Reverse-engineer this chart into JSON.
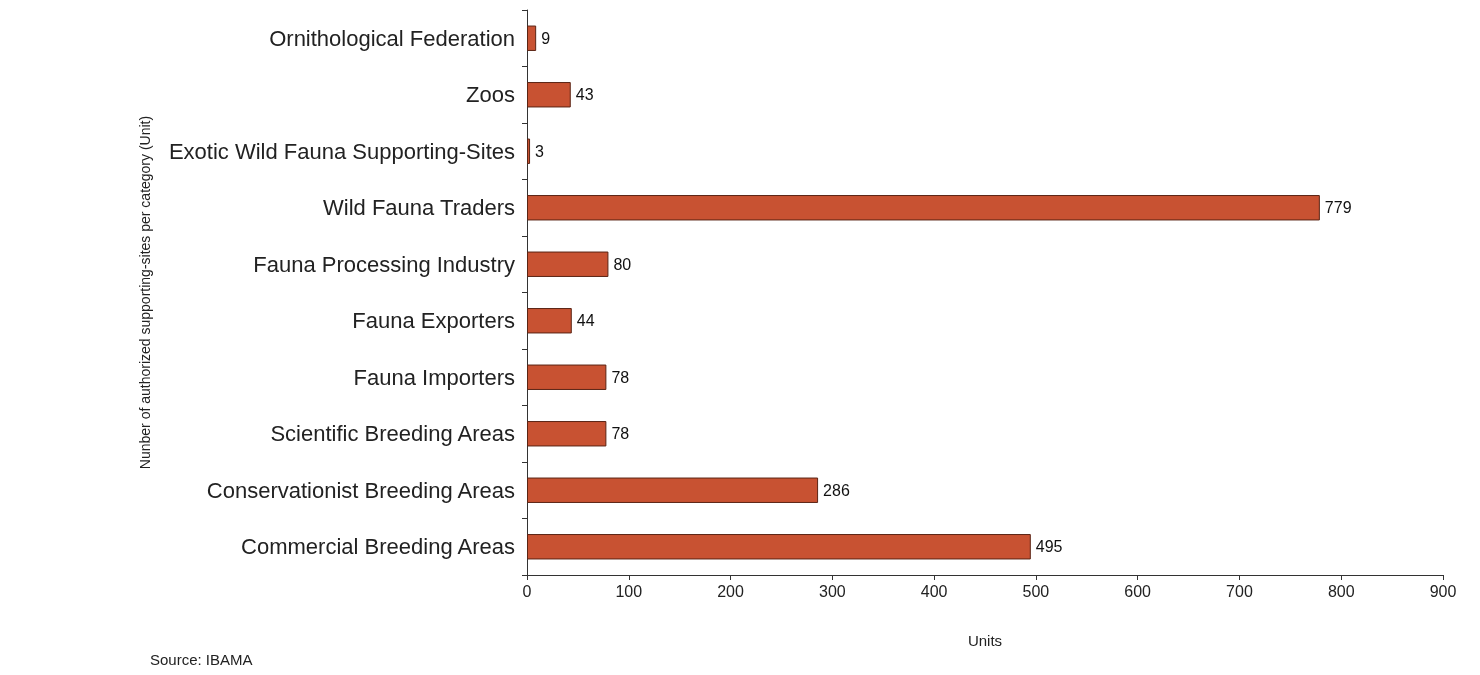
{
  "chart_data": {
    "type": "bar",
    "orientation": "horizontal",
    "categories": [
      "Ornithological Federation",
      "Zoos",
      "Exotic Wild Fauna Supporting-Sites",
      "Wild Fauna Traders",
      "Fauna Processing Industry",
      "Fauna Exporters",
      "Fauna Importers",
      "Scientific Breeding Areas",
      "Conservationist Breeding Areas",
      "Commercial Breeding Areas"
    ],
    "values": [
      9,
      43,
      3,
      779,
      80,
      44,
      78,
      78,
      286,
      495
    ],
    "color": "#c85232",
    "xlim": [
      0,
      900
    ],
    "xticks": [
      0,
      100,
      200,
      300,
      400,
      500,
      600,
      700,
      800,
      900
    ],
    "data_labels": true,
    "grid": false,
    "xlabel": "Units",
    "ylabel": "Nunber of authorized supporting-sites per category (Unit)",
    "annotations": [
      "Source: IBAMA"
    ]
  }
}
